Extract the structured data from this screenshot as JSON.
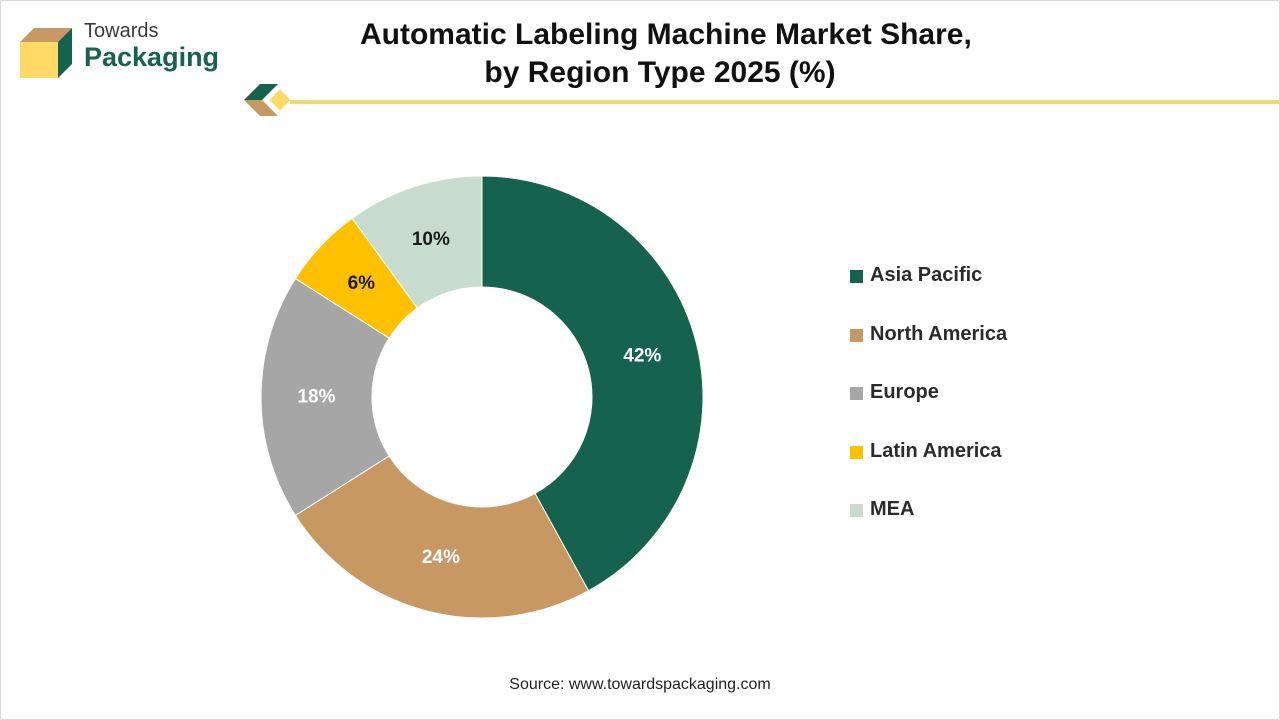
{
  "logo": {
    "line1": "Towards",
    "line2": "Packaging",
    "icon": "box-logo-icon"
  },
  "title": {
    "line1": "Automatic Labeling Machine Market Share,",
    "line2": "by Region Type 2025 (%)"
  },
  "source": "Source: www.towardspackaging.com",
  "colors": {
    "asia_pacific": "#15634f",
    "north_america": "#c89862",
    "europe": "#a6a6a6",
    "latin_america": "#ffc000",
    "mea": "#c7dcce",
    "accent_rule": "#f2d873"
  },
  "chart_data": {
    "type": "pie",
    "donut": true,
    "title": "Automatic Labeling Machine Market Share, by Region Type 2025 (%)",
    "categories": [
      "Asia Pacific",
      "North America",
      "Europe",
      "Latin America",
      "MEA"
    ],
    "values": [
      42,
      24,
      18,
      6,
      10
    ],
    "labels": [
      "42%",
      "24%",
      "18%",
      "6%",
      "10%"
    ],
    "colors": [
      "#15634f",
      "#c89862",
      "#a6a6a6",
      "#ffc000",
      "#c7dcce"
    ],
    "label_colors": [
      "#ffffff",
      "#ffffff",
      "#ffffff",
      "#1a1a1a",
      "#1a1a1a"
    ],
    "start_angle_deg": 0,
    "direction": "clockwise",
    "legend": "right"
  }
}
